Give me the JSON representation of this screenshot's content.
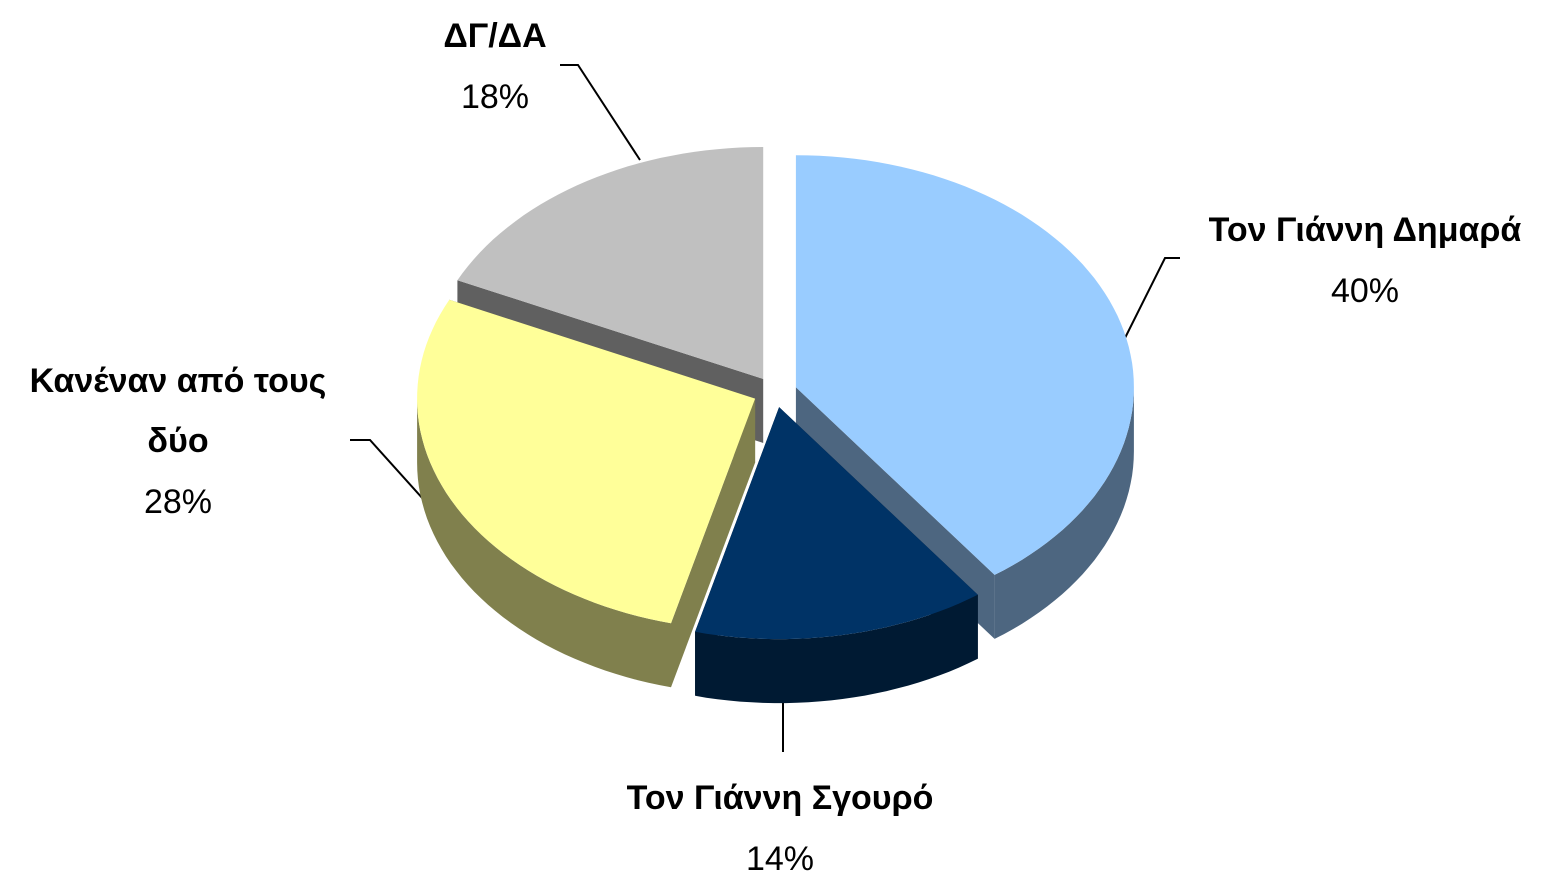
{
  "chart_data": {
    "type": "pie",
    "categories": [
      "Τον Γιάννη Δημαρά",
      "Τον Γιάννη Σγουρό",
      "Κανέναν από τους δύο",
      "ΔΓ/ΔΑ"
    ],
    "values": [
      40,
      14,
      28,
      18
    ],
    "value_labels": [
      "40%",
      "14%",
      "28%",
      "18%"
    ],
    "colors": [
      "#99ccff",
      "#003366",
      "#ffff99",
      "#c0c0c0"
    ],
    "side_colors": [
      "#4d6680",
      "#001a33",
      "#80804d",
      "#606060"
    ]
  }
}
